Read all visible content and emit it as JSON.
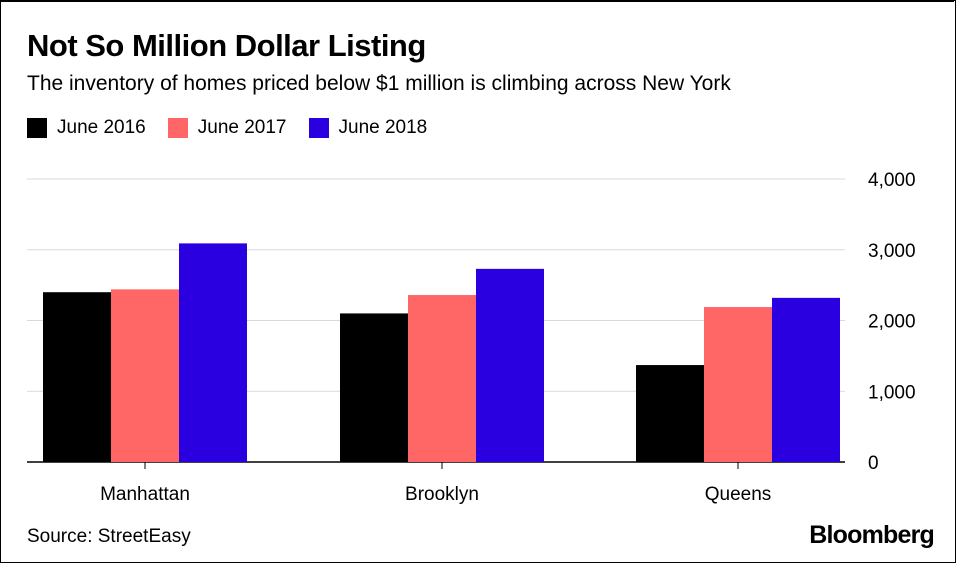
{
  "title": "Not So Million Dollar Listing",
  "subtitle": "The inventory of homes priced below $1 million is climbing across New York",
  "legend": [
    {
      "label": "June 2016",
      "color": "#000000"
    },
    {
      "label": "June 2017",
      "color": "#ff6666"
    },
    {
      "label": "June 2018",
      "color": "#2b00e0"
    }
  ],
  "source": "Source: StreetEasy",
  "brand": "Bloomberg",
  "chart_data": {
    "type": "bar",
    "categories": [
      "Manhattan",
      "Brooklyn",
      "Queens"
    ],
    "series": [
      {
        "name": "June 2016",
        "color": "#000000",
        "values": [
          2400,
          2100,
          1370
        ]
      },
      {
        "name": "June 2017",
        "color": "#ff6666",
        "values": [
          2440,
          2360,
          2190
        ]
      },
      {
        "name": "June 2018",
        "color": "#2b00e0",
        "values": [
          3090,
          2730,
          2320
        ]
      }
    ],
    "yticks": [
      "0",
      "1,000",
      "2,000",
      "3,000",
      "4,000"
    ],
    "ylim": [
      0,
      4000
    ],
    "ytick_values": [
      0,
      1000,
      2000,
      3000,
      4000
    ],
    "grid": true,
    "legend_position": "top-left",
    "xlabel": "",
    "ylabel": ""
  }
}
